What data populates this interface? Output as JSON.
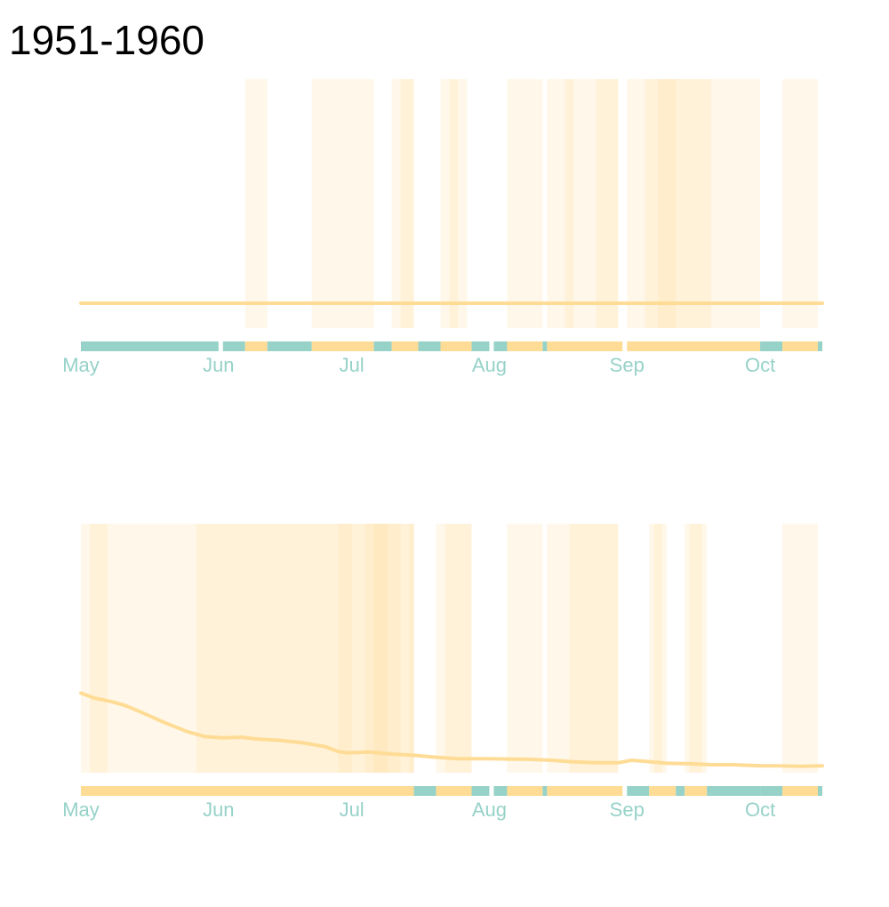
{
  "title": "1951-1960",
  "colors": {
    "band": "#ffdc96",
    "line": "#ffdc96",
    "strip_on": "#ffdc96",
    "strip_off": "#96d2c8",
    "tick_label": "#96d2c8"
  },
  "chart_data": [
    {
      "type": "line",
      "title": "1951-1960",
      "x_axis": {
        "type": "date",
        "range": [
          "1951-05-01",
          "1951-10-15"
        ],
        "tick_labels": [
          "May",
          "Jun",
          "Jul",
          "Aug",
          "Sep",
          "Oct"
        ],
        "tick_dates": [
          "05-01",
          "06-01",
          "07-01",
          "08-01",
          "09-01",
          "10-01"
        ]
      },
      "ylim": [
        0,
        100
      ],
      "grid": false,
      "series": [
        {
          "points": [
            [
              "05-01",
              10
            ],
            [
              "06-01",
              10
            ],
            [
              "07-01",
              10
            ],
            [
              "08-01",
              10
            ],
            [
              "09-01",
              10
            ],
            [
              "10-01",
              10
            ],
            [
              "10-15",
              10
            ]
          ]
        }
      ],
      "bands": [
        {
          "start": "06-07",
          "end": "06-12",
          "intensity": 1
        },
        {
          "start": "06-22",
          "end": "06-25",
          "intensity": 1
        },
        {
          "start": "06-25",
          "end": "07-06",
          "intensity": 1
        },
        {
          "start": "07-10",
          "end": "07-15",
          "intensity": 1
        },
        {
          "start": "07-12",
          "end": "07-15",
          "intensity": 1
        },
        {
          "start": "07-21",
          "end": "07-27",
          "intensity": 1
        },
        {
          "start": "07-23",
          "end": "07-25",
          "intensity": 1
        },
        {
          "start": "08-05",
          "end": "08-13",
          "intensity": 1
        },
        {
          "start": "08-14",
          "end": "08-24",
          "intensity": 1
        },
        {
          "start": "08-18",
          "end": "08-20",
          "intensity": 1
        },
        {
          "start": "08-24",
          "end": "08-30",
          "intensity": 1
        },
        {
          "start": "08-25",
          "end": "08-30",
          "intensity": 1
        },
        {
          "start": "09-01",
          "end": "10-01",
          "intensity": 1
        },
        {
          "start": "09-05",
          "end": "09-12",
          "intensity": 1
        },
        {
          "start": "09-08",
          "end": "09-20",
          "intensity": 1
        },
        {
          "start": "10-06",
          "end": "10-14",
          "intensity": 1
        }
      ],
      "strip": [
        {
          "start": "05-01",
          "end": "06-01",
          "state": "off"
        },
        {
          "start": "06-02",
          "end": "06-07",
          "state": "off"
        },
        {
          "start": "06-07",
          "end": "06-12",
          "state": "on"
        },
        {
          "start": "06-12",
          "end": "06-22",
          "state": "off"
        },
        {
          "start": "06-22",
          "end": "07-06",
          "state": "on"
        },
        {
          "start": "07-06",
          "end": "07-10",
          "state": "off"
        },
        {
          "start": "07-10",
          "end": "07-16",
          "state": "on"
        },
        {
          "start": "07-16",
          "end": "07-21",
          "state": "off"
        },
        {
          "start": "07-21",
          "end": "07-28",
          "state": "on"
        },
        {
          "start": "07-28",
          "end": "08-01",
          "state": "off"
        },
        {
          "start": "08-02",
          "end": "08-05",
          "state": "off"
        },
        {
          "start": "08-05",
          "end": "08-13",
          "state": "on"
        },
        {
          "start": "08-13",
          "end": "08-14",
          "state": "off"
        },
        {
          "start": "08-14",
          "end": "08-31",
          "state": "on"
        },
        {
          "start": "09-01",
          "end": "10-01",
          "state": "on"
        },
        {
          "start": "10-01",
          "end": "10-06",
          "state": "off"
        },
        {
          "start": "10-06",
          "end": "10-14",
          "state": "on"
        },
        {
          "start": "10-14",
          "end": "10-15",
          "state": "off"
        }
      ]
    },
    {
      "type": "line",
      "x_axis": {
        "type": "date",
        "range": [
          "1951-05-01",
          "1951-10-15"
        ],
        "tick_labels": [
          "May",
          "Jun",
          "Jul",
          "Aug",
          "Sep",
          "Oct"
        ],
        "tick_dates": [
          "05-01",
          "06-01",
          "07-01",
          "08-01",
          "09-01",
          "10-01"
        ]
      },
      "ylim": [
        0,
        100
      ],
      "grid": false,
      "series": [
        {
          "points": [
            [
              "05-01",
              32
            ],
            [
              "05-04",
              30
            ],
            [
              "05-08",
              28.5
            ],
            [
              "05-11",
              27
            ],
            [
              "05-15",
              24
            ],
            [
              "05-20",
              20
            ],
            [
              "05-25",
              16.5
            ],
            [
              "05-29",
              14.5
            ],
            [
              "06-02",
              14
            ],
            [
              "06-06",
              14.3
            ],
            [
              "06-10",
              13.5
            ],
            [
              "06-15",
              13
            ],
            [
              "06-20",
              12
            ],
            [
              "06-25",
              10.5
            ],
            [
              "06-28",
              8.5
            ],
            [
              "06-30",
              8
            ],
            [
              "07-05",
              8.3
            ],
            [
              "07-10",
              7.5
            ],
            [
              "07-15",
              7
            ],
            [
              "07-20",
              6.2
            ],
            [
              "07-25",
              5.6
            ],
            [
              "08-01",
              5.6
            ],
            [
              "08-05",
              5.5
            ],
            [
              "08-10",
              5.4
            ],
            [
              "08-15",
              5
            ],
            [
              "08-20",
              4.4
            ],
            [
              "08-25",
              4
            ],
            [
              "08-30",
              4
            ],
            [
              "09-02",
              5
            ],
            [
              "09-05",
              4.6
            ],
            [
              "09-10",
              3.8
            ],
            [
              "09-15",
              3.6
            ],
            [
              "09-20",
              3.2
            ],
            [
              "09-25",
              3.2
            ],
            [
              "10-01",
              2.8
            ],
            [
              "10-05",
              2.8
            ],
            [
              "10-10",
              2.6
            ],
            [
              "10-15",
              2.8
            ]
          ]
        }
      ],
      "bands": [
        {
          "start": "05-01",
          "end": "05-07",
          "intensity": 1
        },
        {
          "start": "05-03",
          "end": "05-07",
          "intensity": 1
        },
        {
          "start": "05-07",
          "end": "05-18",
          "intensity": 1
        },
        {
          "start": "05-18",
          "end": "07-15",
          "intensity": 1
        },
        {
          "start": "05-27",
          "end": "06-13",
          "intensity": 1
        },
        {
          "start": "06-13",
          "end": "06-15",
          "intensity": 1
        },
        {
          "start": "06-15",
          "end": "06-26",
          "intensity": 1
        },
        {
          "start": "06-26",
          "end": "07-15",
          "intensity": 1
        },
        {
          "start": "06-28",
          "end": "07-01",
          "intensity": 1
        },
        {
          "start": "07-04",
          "end": "07-12",
          "intensity": 1
        },
        {
          "start": "07-06",
          "end": "07-09",
          "intensity": 1
        },
        {
          "start": "07-14",
          "end": "07-15",
          "intensity": 1
        },
        {
          "start": "07-20",
          "end": "07-28",
          "intensity": 1
        },
        {
          "start": "07-22",
          "end": "07-28",
          "intensity": 1
        },
        {
          "start": "08-05",
          "end": "08-13",
          "intensity": 1
        },
        {
          "start": "08-14",
          "end": "08-30",
          "intensity": 1
        },
        {
          "start": "08-19",
          "end": "08-30",
          "intensity": 1
        },
        {
          "start": "09-06",
          "end": "09-10",
          "intensity": 1
        },
        {
          "start": "09-07",
          "end": "09-09",
          "intensity": 1
        },
        {
          "start": "09-14",
          "end": "09-19",
          "intensity": 1
        },
        {
          "start": "09-15",
          "end": "09-18",
          "intensity": 1
        },
        {
          "start": "10-06",
          "end": "10-14",
          "intensity": 1
        }
      ],
      "strip": [
        {
          "start": "05-01",
          "end": "07-15",
          "state": "on"
        },
        {
          "start": "07-15",
          "end": "07-20",
          "state": "off"
        },
        {
          "start": "07-20",
          "end": "07-28",
          "state": "on"
        },
        {
          "start": "07-28",
          "end": "08-01",
          "state": "off"
        },
        {
          "start": "08-02",
          "end": "08-05",
          "state": "off"
        },
        {
          "start": "08-05",
          "end": "08-13",
          "state": "on"
        },
        {
          "start": "08-13",
          "end": "08-14",
          "state": "off"
        },
        {
          "start": "08-14",
          "end": "08-31",
          "state": "on"
        },
        {
          "start": "09-01",
          "end": "09-06",
          "state": "off"
        },
        {
          "start": "09-06",
          "end": "09-12",
          "state": "on"
        },
        {
          "start": "09-12",
          "end": "09-14",
          "state": "off"
        },
        {
          "start": "09-14",
          "end": "09-19",
          "state": "on"
        },
        {
          "start": "09-19",
          "end": "10-01",
          "state": "off"
        },
        {
          "start": "10-01",
          "end": "10-06",
          "state": "off"
        },
        {
          "start": "10-06",
          "end": "10-14",
          "state": "on"
        },
        {
          "start": "10-14",
          "end": "10-15",
          "state": "off"
        }
      ]
    }
  ]
}
